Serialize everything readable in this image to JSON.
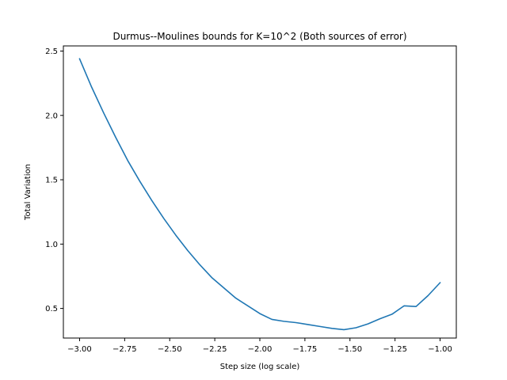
{
  "chart_data": {
    "type": "line",
    "title": "Durmus--Moulines bounds for K=10^2 (Both sources of error)",
    "xlabel": "Step size (log scale)",
    "ylabel": "Total Variation",
    "xlim": [
      -3.09,
      -0.91
    ],
    "ylim": [
      0.27,
      2.54
    ],
    "x_ticks": [
      -3.0,
      -2.75,
      -2.5,
      -2.25,
      -2.0,
      -1.75,
      -1.5,
      -1.25,
      -1.0
    ],
    "x_tick_labels": [
      "−3.00",
      "−2.75",
      "−2.50",
      "−2.25",
      "−2.00",
      "−1.75",
      "−1.50",
      "−1.25",
      "−1.00"
    ],
    "y_ticks": [
      0.5,
      1.0,
      1.5,
      2.0,
      2.5
    ],
    "y_tick_labels": [
      "0.5",
      "1.0",
      "1.5",
      "2.0",
      "2.5"
    ],
    "grid": false,
    "legend": "none",
    "series": [
      {
        "color": "#1f77b4",
        "x": [
          -3.0,
          -2.9333,
          -2.8667,
          -2.8,
          -2.7333,
          -2.6667,
          -2.6,
          -2.5333,
          -2.4667,
          -2.4,
          -2.3333,
          -2.2667,
          -2.2,
          -2.1333,
          -2.0667,
          -2.0,
          -1.9333,
          -1.8667,
          -1.8,
          -1.7333,
          -1.6667,
          -1.6,
          -1.5333,
          -1.4667,
          -1.4,
          -1.3333,
          -1.2667,
          -1.2,
          -1.1333,
          -1.0667,
          -1.0
        ],
        "y": [
          2.44,
          2.22,
          2.02,
          1.83,
          1.65,
          1.49,
          1.34,
          1.2,
          1.07,
          0.95,
          0.84,
          0.74,
          0.66,
          0.58,
          0.52,
          0.46,
          0.415,
          0.4,
          0.39,
          0.375,
          0.36,
          0.345,
          0.335,
          0.35,
          0.38,
          0.42,
          0.455,
          0.52,
          0.515,
          0.6,
          0.7
        ]
      }
    ]
  }
}
